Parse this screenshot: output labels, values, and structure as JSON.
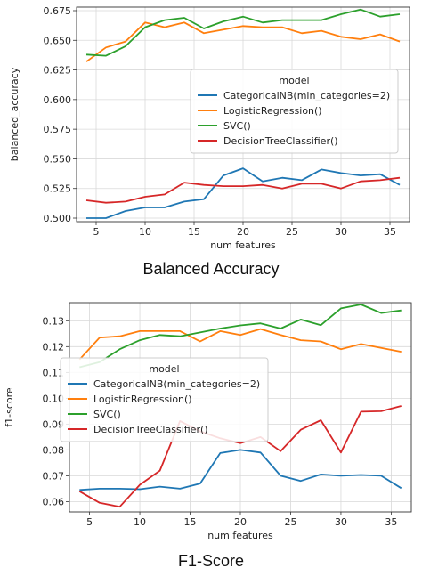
{
  "chart_data": [
    {
      "type": "line",
      "caption": "Balanced Accuracy",
      "xlabel": "num features",
      "ylabel": "balanced_accuracy",
      "xlim": [
        3,
        37
      ],
      "ylim": [
        0.497,
        0.678
      ],
      "xticks": [
        5,
        10,
        15,
        20,
        25,
        30,
        35
      ],
      "yticks": [
        0.5,
        0.525,
        0.55,
        0.575,
        0.6,
        0.625,
        0.65,
        0.675
      ],
      "ytick_decimals": 3,
      "grid": true,
      "legend": {
        "title": "model",
        "placement": "center-right",
        "entries": [
          "CategoricalNB(min_categories=2)",
          "LogisticRegression()",
          "SVC()",
          "DecisionTreeClassifier()"
        ]
      },
      "x": [
        4,
        6,
        8,
        10,
        12,
        14,
        16,
        18,
        20,
        22,
        24,
        26,
        28,
        30,
        32,
        34,
        36
      ],
      "series": [
        {
          "name": "CategoricalNB(min_categories=2)",
          "color": "#1f77b4",
          "values": [
            0.5,
            0.5,
            0.506,
            0.509,
            0.509,
            0.514,
            0.516,
            0.536,
            0.542,
            0.531,
            0.534,
            0.532,
            0.541,
            0.538,
            0.536,
            0.537,
            0.528
          ]
        },
        {
          "name": "LogisticRegression()",
          "color": "#ff7f0e",
          "values": [
            0.632,
            0.644,
            0.649,
            0.665,
            0.661,
            0.665,
            0.656,
            0.659,
            0.662,
            0.661,
            0.661,
            0.656,
            0.658,
            0.653,
            0.651,
            0.655,
            0.649
          ]
        },
        {
          "name": "SVC()",
          "color": "#2ca02c",
          "values": [
            0.638,
            0.637,
            0.645,
            0.661,
            0.667,
            0.669,
            0.66,
            0.666,
            0.67,
            0.665,
            0.667,
            0.667,
            0.667,
            0.672,
            0.676,
            0.67,
            0.672
          ]
        },
        {
          "name": "DecisionTreeClassifier()",
          "color": "#d62728",
          "values": [
            0.515,
            0.513,
            0.514,
            0.518,
            0.52,
            0.53,
            0.528,
            0.527,
            0.527,
            0.528,
            0.525,
            0.529,
            0.529,
            0.525,
            0.531,
            0.532,
            0.534
          ]
        }
      ]
    },
    {
      "type": "line",
      "caption": "F1-Score",
      "xlabel": "num features",
      "ylabel": "f1-score",
      "xlim": [
        3,
        37
      ],
      "ylim": [
        0.056,
        0.137
      ],
      "xticks": [
        5,
        10,
        15,
        20,
        25,
        30,
        35
      ],
      "yticks": [
        0.06,
        0.07,
        0.08,
        0.09,
        0.1,
        0.11,
        0.12,
        0.13
      ],
      "ytick_decimals": 2,
      "grid": true,
      "legend": {
        "title": "model",
        "placement": "center-left",
        "entries": [
          "CategoricalNB(min_categories=2)",
          "LogisticRegression()",
          "SVC()",
          "DecisionTreeClassifier()"
        ]
      },
      "x": [
        4,
        6,
        8,
        10,
        12,
        14,
        16,
        18,
        20,
        22,
        24,
        26,
        28,
        30,
        32,
        34,
        36
      ],
      "series": [
        {
          "name": "CategoricalNB(min_categories=2)",
          "color": "#1f77b4",
          "values": [
            0.0645,
            0.065,
            0.065,
            0.0648,
            0.0658,
            0.065,
            0.067,
            0.0788,
            0.08,
            0.079,
            0.07,
            0.068,
            0.0705,
            0.07,
            0.0703,
            0.07,
            0.0652
          ]
        },
        {
          "name": "LogisticRegression()",
          "color": "#ff7f0e",
          "values": [
            0.115,
            0.1235,
            0.124,
            0.126,
            0.126,
            0.126,
            0.122,
            0.126,
            0.1245,
            0.1268,
            0.1245,
            0.1225,
            0.122,
            0.119,
            0.121,
            0.1195,
            0.118
          ]
        },
        {
          "name": "SVC()",
          "color": "#2ca02c",
          "values": [
            0.112,
            0.114,
            0.119,
            0.1225,
            0.1245,
            0.124,
            0.1255,
            0.127,
            0.1282,
            0.129,
            0.127,
            0.1305,
            0.1283,
            0.1348,
            0.1363,
            0.133,
            0.134
          ]
        },
        {
          "name": "DecisionTreeClassifier()",
          "color": "#d62728",
          "values": [
            0.064,
            0.0595,
            0.058,
            0.0665,
            0.072,
            0.0912,
            0.0872,
            0.0845,
            0.0826,
            0.085,
            0.0795,
            0.0878,
            0.0915,
            0.079,
            0.0948,
            0.095,
            0.097
          ]
        }
      ]
    }
  ]
}
